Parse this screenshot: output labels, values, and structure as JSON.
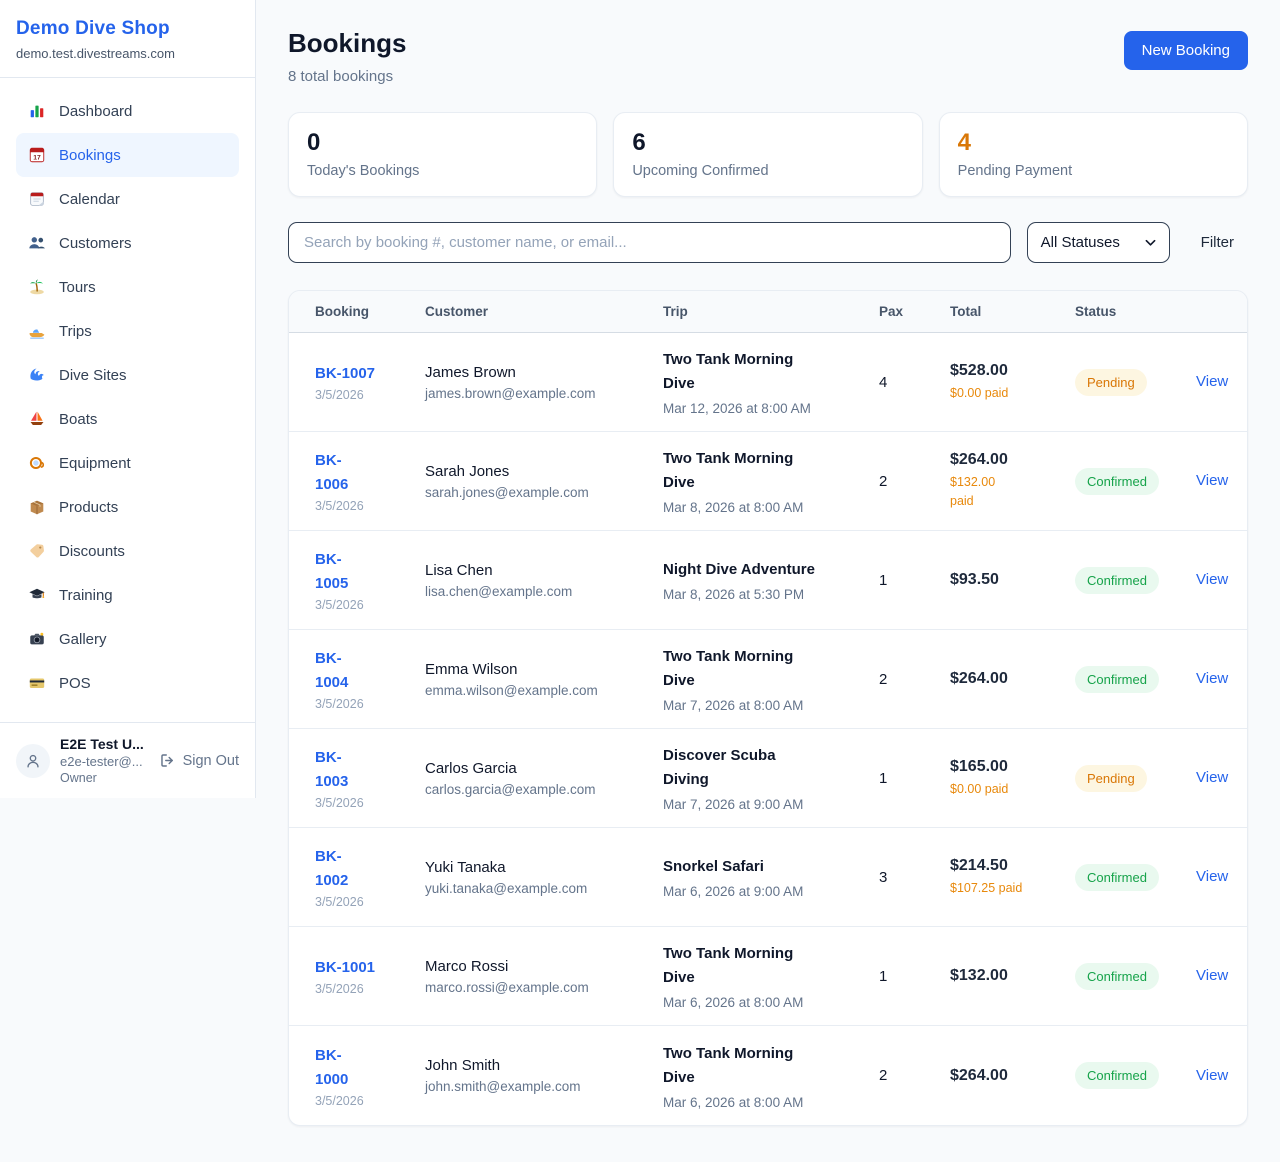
{
  "colors": {
    "accent": "#2563eb",
    "pending_text": "#d97706",
    "pending_bg": "#fdf6e1",
    "confirmed_text": "#16a34a",
    "confirmed_bg": "#e9f9ef",
    "paid_text": "#e8890c"
  },
  "sidebar": {
    "brand": "Demo Dive Shop",
    "domain": "demo.test.divestreams.com",
    "items": [
      {
        "label": "Dashboard",
        "icon": "bar-chart",
        "active": false
      },
      {
        "label": "Bookings",
        "icon": "calendar-date",
        "active": true
      },
      {
        "label": "Calendar",
        "icon": "calendar",
        "active": false
      },
      {
        "label": "Customers",
        "icon": "people",
        "active": false
      },
      {
        "label": "Tours",
        "icon": "island",
        "active": false
      },
      {
        "label": "Trips",
        "icon": "speedboat",
        "active": false
      },
      {
        "label": "Dive Sites",
        "icon": "wave",
        "active": false
      },
      {
        "label": "Boats",
        "icon": "sailboat",
        "active": false
      },
      {
        "label": "Equipment",
        "icon": "dive-mask",
        "active": false
      },
      {
        "label": "Products",
        "icon": "package",
        "active": false
      },
      {
        "label": "Discounts",
        "icon": "tag",
        "active": false
      },
      {
        "label": "Training",
        "icon": "grad-cap",
        "active": false
      },
      {
        "label": "Gallery",
        "icon": "camera",
        "active": false
      },
      {
        "label": "POS",
        "icon": "credit-card",
        "active": false
      }
    ],
    "user": {
      "name": "E2E Test U...",
      "email": "e2e-tester@...",
      "role": "Owner",
      "sign_out_label": "Sign Out"
    }
  },
  "header": {
    "title": "Bookings",
    "subtitle": "8 total bookings",
    "new_booking_label": "New Booking"
  },
  "stats": [
    {
      "value": "0",
      "label": "Today's Bookings",
      "value_color": "#0f172a"
    },
    {
      "value": "6",
      "label": "Upcoming Confirmed",
      "value_color": "#0f172a"
    },
    {
      "value": "4",
      "label": "Pending Payment",
      "value_color": "#d97706"
    }
  ],
  "controls": {
    "search_placeholder": "Search by booking #, customer name, or email...",
    "status_filter_value": "All Statuses",
    "filter_label": "Filter"
  },
  "table": {
    "headers": [
      "Booking",
      "Customer",
      "Trip",
      "Pax",
      "Total",
      "Status"
    ],
    "rows": [
      {
        "id_lines": [
          "BK-1007"
        ],
        "date": "3/5/2026",
        "customer": "James Brown",
        "email": "james.brown@example.com",
        "trip_lines": [
          "Two Tank Morning",
          "Dive"
        ],
        "trip_time": "Mar 12, 2026 at 8:00 AM",
        "pax": "4",
        "total": "$528.00",
        "paid_lines": [
          "$0.00 paid"
        ],
        "status": "Pending",
        "status_type": "pending",
        "action": "View"
      },
      {
        "id_lines": [
          "BK-",
          "1006"
        ],
        "date": "3/5/2026",
        "customer": "Sarah Jones",
        "email": "sarah.jones@example.com",
        "trip_lines": [
          "Two Tank Morning",
          "Dive"
        ],
        "trip_time": "Mar 8, 2026 at 8:00 AM",
        "pax": "2",
        "total": "$264.00",
        "paid_lines": [
          "$132.00",
          "paid"
        ],
        "status": "Confirmed",
        "status_type": "confirmed",
        "action": "View"
      },
      {
        "id_lines": [
          "BK-",
          "1005"
        ],
        "date": "3/5/2026",
        "customer": "Lisa Chen",
        "email": "lisa.chen@example.com",
        "trip_lines": [
          "Night Dive Adventure"
        ],
        "trip_time": "Mar 8, 2026 at 5:30 PM",
        "pax": "1",
        "total": "$93.50",
        "paid_lines": [],
        "status": "Confirmed",
        "status_type": "confirmed",
        "action": "View"
      },
      {
        "id_lines": [
          "BK-",
          "1004"
        ],
        "date": "3/5/2026",
        "customer": "Emma Wilson",
        "email": "emma.wilson@example.com",
        "trip_lines": [
          "Two Tank Morning",
          "Dive"
        ],
        "trip_time": "Mar 7, 2026 at 8:00 AM",
        "pax": "2",
        "total": "$264.00",
        "paid_lines": [],
        "status": "Confirmed",
        "status_type": "confirmed",
        "action": "View"
      },
      {
        "id_lines": [
          "BK-",
          "1003"
        ],
        "date": "3/5/2026",
        "customer": "Carlos Garcia",
        "email": "carlos.garcia@example.com",
        "trip_lines": [
          "Discover Scuba",
          "Diving"
        ],
        "trip_time": "Mar 7, 2026 at 9:00 AM",
        "pax": "1",
        "total": "$165.00",
        "paid_lines": [
          "$0.00 paid"
        ],
        "status": "Pending",
        "status_type": "pending",
        "action": "View"
      },
      {
        "id_lines": [
          "BK-",
          "1002"
        ],
        "date": "3/5/2026",
        "customer": "Yuki Tanaka",
        "email": "yuki.tanaka@example.com",
        "trip_lines": [
          "Snorkel Safari"
        ],
        "trip_time": "Mar 6, 2026 at 9:00 AM",
        "pax": "3",
        "total": "$214.50",
        "paid_lines": [
          "$107.25 paid"
        ],
        "status": "Confirmed",
        "status_type": "confirmed",
        "action": "View"
      },
      {
        "id_lines": [
          "BK-1001"
        ],
        "date": "3/5/2026",
        "customer": "Marco Rossi",
        "email": "marco.rossi@example.com",
        "trip_lines": [
          "Two Tank Morning",
          "Dive"
        ],
        "trip_time": "Mar 6, 2026 at 8:00 AM",
        "pax": "1",
        "total": "$132.00",
        "paid_lines": [],
        "status": "Confirmed",
        "status_type": "confirmed",
        "action": "View"
      },
      {
        "id_lines": [
          "BK-",
          "1000"
        ],
        "date": "3/5/2026",
        "customer": "John Smith",
        "email": "john.smith@example.com",
        "trip_lines": [
          "Two Tank Morning",
          "Dive"
        ],
        "trip_time": "Mar 6, 2026 at 8:00 AM",
        "pax": "2",
        "total": "$264.00",
        "paid_lines": [],
        "status": "Confirmed",
        "status_type": "confirmed",
        "action": "View"
      }
    ]
  }
}
